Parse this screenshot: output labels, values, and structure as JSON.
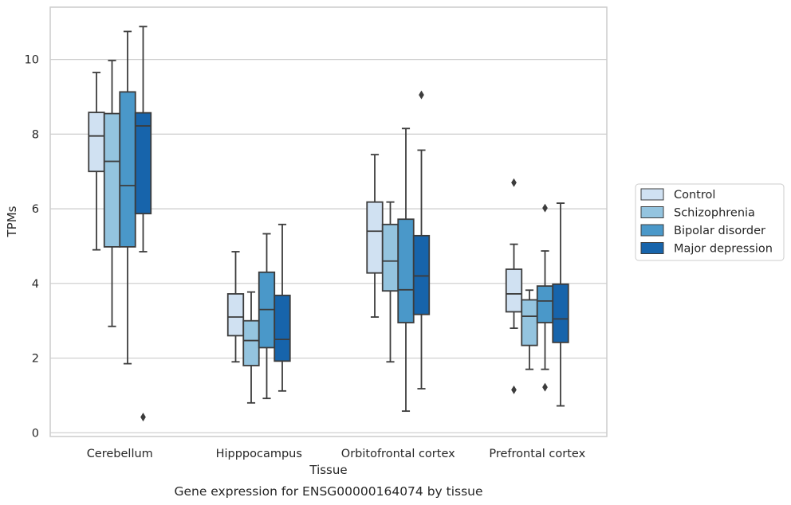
{
  "chart_data": {
    "type": "box",
    "title": "Gene expression for ENSG00000164074 by tissue",
    "xlabel": "Tissue",
    "ylabel": "TPMs",
    "ylim": [
      -0.1,
      11.4
    ],
    "yticks": [
      0,
      2,
      4,
      6,
      8,
      10
    ],
    "grid": "horizontal",
    "legend_position": "right",
    "categories": [
      "Cerebellum",
      "Hipppocampus",
      "Orbitofrontal cortex",
      "Prefrontal cortex"
    ],
    "series": [
      {
        "name": "Control",
        "color": "#d0e1f2",
        "boxes": [
          {
            "whisker_low": 4.9,
            "q1": 7.0,
            "median": 7.95,
            "q3": 8.58,
            "whisker_high": 9.65,
            "outliers": []
          },
          {
            "whisker_low": 1.9,
            "q1": 2.6,
            "median": 3.1,
            "q3": 3.72,
            "whisker_high": 4.85,
            "outliers": []
          },
          {
            "whisker_low": 3.1,
            "q1": 4.28,
            "median": 5.4,
            "q3": 6.18,
            "whisker_high": 7.45,
            "outliers": []
          },
          {
            "whisker_low": 2.8,
            "q1": 3.24,
            "median": 3.72,
            "q3": 4.38,
            "whisker_high": 5.05,
            "outliers": [
              6.7,
              1.15
            ]
          }
        ]
      },
      {
        "name": "Schizophrenia",
        "color": "#94c4df",
        "boxes": [
          {
            "whisker_low": 2.85,
            "q1": 4.98,
            "median": 7.27,
            "q3": 8.55,
            "whisker_high": 9.97,
            "outliers": []
          },
          {
            "whisker_low": 0.8,
            "q1": 1.8,
            "median": 2.47,
            "q3": 3.0,
            "whisker_high": 3.77,
            "outliers": []
          },
          {
            "whisker_low": 1.9,
            "q1": 3.8,
            "median": 4.6,
            "q3": 5.58,
            "whisker_high": 6.18,
            "outliers": []
          },
          {
            "whisker_low": 1.7,
            "q1": 2.34,
            "median": 3.12,
            "q3": 3.56,
            "whisker_high": 3.82,
            "outliers": []
          }
        ]
      },
      {
        "name": "Bipolar disorder",
        "color": "#4a98c9",
        "boxes": [
          {
            "whisker_low": 1.85,
            "q1": 4.98,
            "median": 6.62,
            "q3": 9.13,
            "whisker_high": 10.75,
            "outliers": []
          },
          {
            "whisker_low": 0.92,
            "q1": 2.28,
            "median": 3.3,
            "q3": 4.3,
            "whisker_high": 5.33,
            "outliers": []
          },
          {
            "whisker_low": 0.58,
            "q1": 2.95,
            "median": 3.83,
            "q3": 5.72,
            "whisker_high": 8.15,
            "outliers": []
          },
          {
            "whisker_low": 1.7,
            "q1": 2.95,
            "median": 3.53,
            "q3": 3.93,
            "whisker_high": 4.87,
            "outliers": [
              6.02,
              1.22
            ]
          }
        ]
      },
      {
        "name": "Major depression",
        "color": "#1764ab",
        "boxes": [
          {
            "whisker_low": 4.85,
            "q1": 5.87,
            "median": 8.22,
            "q3": 8.57,
            "whisker_high": 10.88,
            "outliers": [
              0.42
            ]
          },
          {
            "whisker_low": 1.12,
            "q1": 1.92,
            "median": 2.5,
            "q3": 3.68,
            "whisker_high": 5.58,
            "outliers": []
          },
          {
            "whisker_low": 1.18,
            "q1": 3.17,
            "median": 4.2,
            "q3": 5.28,
            "whisker_high": 7.57,
            "outliers": [
              9.05
            ]
          },
          {
            "whisker_low": 0.72,
            "q1": 2.42,
            "median": 3.05,
            "q3": 3.98,
            "whisker_high": 6.15,
            "outliers": []
          }
        ]
      }
    ]
  }
}
